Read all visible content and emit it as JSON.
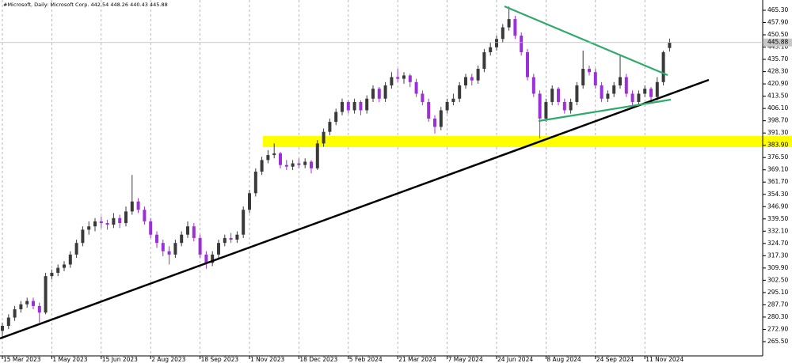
{
  "chart_data": {
    "type": "candlestick",
    "title": "#Microsoft, Daily:  Microsoft Corp.",
    "up_color": "#3a3a3a",
    "down_color": "#9b30d9",
    "ylim": [
      256.9,
      471.5
    ],
    "yticks": [
      {
        "value": 465.3,
        "label": "465.30"
      },
      {
        "value": 457.9,
        "label": "457.90"
      },
      {
        "value": 450.5,
        "label": "450.50"
      },
      {
        "value": 443.1,
        "label": "443.10"
      },
      {
        "value": 435.7,
        "label": "435.70"
      },
      {
        "value": 428.3,
        "label": "428.30"
      },
      {
        "value": 420.9,
        "label": "420.90"
      },
      {
        "value": 413.5,
        "label": "413.50"
      },
      {
        "value": 406.1,
        "label": "406.10"
      },
      {
        "value": 398.7,
        "label": "398.70"
      },
      {
        "value": 391.3,
        "label": "391.30"
      },
      {
        "value": 383.9,
        "label": "383.90"
      },
      {
        "value": 376.5,
        "label": "376.50"
      },
      {
        "value": 369.1,
        "label": "369.10"
      },
      {
        "value": 361.7,
        "label": "361.70"
      },
      {
        "value": 354.3,
        "label": "354.30"
      },
      {
        "value": 346.9,
        "label": "346.90"
      },
      {
        "value": 339.5,
        "label": "339.50"
      },
      {
        "value": 332.1,
        "label": "332.10"
      },
      {
        "value": 324.7,
        "label": "324.70"
      },
      {
        "value": 317.3,
        "label": "317.30"
      },
      {
        "value": 309.9,
        "label": "309.90"
      },
      {
        "value": 302.5,
        "label": "302.50"
      },
      {
        "value": 295.1,
        "label": "295.10"
      },
      {
        "value": 287.7,
        "label": "287.70"
      },
      {
        "value": 280.3,
        "label": "280.30"
      },
      {
        "value": 272.9,
        "label": "272.90"
      },
      {
        "value": 265.5,
        "label": "265.50"
      }
    ],
    "categories": [
      "15 Mar 2023",
      null,
      null,
      null,
      null,
      null,
      null,
      null,
      "1 May 2023",
      null,
      null,
      null,
      null,
      null,
      null,
      null,
      "15 Jun 2023",
      null,
      null,
      null,
      null,
      null,
      null,
      null,
      "2 Aug 2023",
      null,
      null,
      null,
      null,
      null,
      null,
      null,
      "18 Sep 2023",
      null,
      null,
      null,
      null,
      null,
      null,
      null,
      "1 Nov 2023",
      null,
      null,
      null,
      null,
      null,
      null,
      null,
      "18 Dec 2023",
      null,
      null,
      null,
      null,
      null,
      null,
      null,
      "5 Feb 2024",
      null,
      null,
      null,
      null,
      null,
      null,
      null,
      "21 Mar 2024",
      null,
      null,
      null,
      null,
      null,
      null,
      null,
      "7 May 2024",
      null,
      null,
      null,
      null,
      null,
      null,
      null,
      "24 Jun 2024",
      null,
      null,
      null,
      null,
      null,
      null,
      null,
      "8 Aug 2024",
      null,
      null,
      null,
      null,
      null,
      null,
      null,
      "24 Sep 2024",
      null,
      null,
      null,
      null,
      null,
      null,
      null,
      "11 Nov 2024",
      null,
      null,
      null,
      null
    ],
    "ohlc": [
      [
        272,
        277,
        268,
        275
      ],
      [
        275,
        282,
        273,
        280
      ],
      [
        280,
        287,
        278,
        285
      ],
      [
        285,
        290,
        283,
        288
      ],
      [
        288,
        292,
        286,
        290
      ],
      [
        290,
        292,
        285,
        287
      ],
      [
        287,
        289,
        277,
        283
      ],
      [
        283,
        307,
        282,
        305
      ],
      [
        305,
        309,
        303,
        307
      ],
      [
        307,
        312,
        305,
        310
      ],
      [
        310,
        314,
        308,
        312
      ],
      [
        312,
        320,
        310,
        318
      ],
      [
        318,
        327,
        316,
        325
      ],
      [
        325,
        335,
        323,
        333
      ],
      [
        333,
        338,
        330,
        335
      ],
      [
        335,
        340,
        332,
        338
      ],
      [
        338,
        341,
        334,
        337
      ],
      [
        337,
        339,
        333,
        336
      ],
      [
        336,
        343,
        334,
        340
      ],
      [
        340,
        342,
        334,
        337
      ],
      [
        337,
        347,
        335,
        344
      ],
      [
        344,
        366,
        342,
        350
      ],
      [
        350,
        352,
        343,
        345
      ],
      [
        345,
        347,
        336,
        338
      ],
      [
        338,
        340,
        328,
        330
      ],
      [
        330,
        332,
        322,
        325
      ],
      [
        325,
        327,
        317,
        320
      ],
      [
        320,
        323,
        312,
        318
      ],
      [
        318,
        327,
        316,
        325
      ],
      [
        325,
        332,
        323,
        330
      ],
      [
        330,
        338,
        328,
        335
      ],
      [
        335,
        337,
        326,
        328
      ],
      [
        328,
        330,
        316,
        318
      ],
      [
        318,
        320,
        309.5,
        313
      ],
      [
        313,
        320,
        311,
        318
      ],
      [
        318,
        327,
        316,
        325
      ],
      [
        325,
        330,
        323,
        328
      ],
      [
        328,
        331,
        325,
        327
      ],
      [
        327,
        332,
        325,
        330
      ],
      [
        330,
        347,
        328,
        345
      ],
      [
        345,
        357,
        343,
        355
      ],
      [
        355,
        370,
        353,
        368
      ],
      [
        368,
        377,
        366,
        375
      ],
      [
        375,
        381,
        373,
        378
      ],
      [
        378,
        385,
        376,
        379
      ],
      [
        379,
        380,
        370,
        372
      ],
      [
        372,
        375,
        369,
        371
      ],
      [
        371,
        375,
        369,
        373
      ],
      [
        373,
        376,
        370,
        372
      ],
      [
        372,
        376,
        370,
        374
      ],
      [
        374,
        375,
        367,
        370
      ],
      [
        370,
        387,
        369,
        385
      ],
      [
        385,
        394,
        383,
        392
      ],
      [
        392,
        400,
        390,
        398
      ],
      [
        398,
        406,
        396,
        404
      ],
      [
        404,
        412,
        402,
        410
      ],
      [
        410,
        411,
        403,
        405
      ],
      [
        405,
        412,
        403,
        410
      ],
      [
        410,
        411,
        402,
        405
      ],
      [
        405,
        414,
        403,
        412
      ],
      [
        412,
        420,
        410,
        418
      ],
      [
        418,
        419,
        410,
        412
      ],
      [
        412,
        422,
        410,
        420
      ],
      [
        420,
        428,
        418,
        425
      ],
      [
        425,
        430,
        422,
        424
      ],
      [
        424,
        428,
        421,
        426
      ],
      [
        426,
        427,
        419,
        422
      ],
      [
        422,
        424,
        413,
        415
      ],
      [
        415,
        417,
        408,
        410
      ],
      [
        410,
        412,
        398,
        400
      ],
      [
        400,
        402,
        391,
        395
      ],
      [
        395,
        407,
        393,
        405
      ],
      [
        405,
        412,
        403,
        410
      ],
      [
        410,
        415,
        408,
        412
      ],
      [
        412,
        422,
        410,
        420
      ],
      [
        420,
        427,
        418,
        425
      ],
      [
        425,
        427,
        420,
        423
      ],
      [
        423,
        432,
        421,
        430
      ],
      [
        430,
        442,
        428,
        440
      ],
      [
        440,
        446,
        438,
        443
      ],
      [
        443,
        450,
        441,
        448
      ],
      [
        448,
        457,
        446,
        455
      ],
      [
        455,
        467.5,
        453,
        460
      ],
      [
        460,
        462,
        448,
        450
      ],
      [
        450,
        452,
        438,
        440
      ],
      [
        440,
        442,
        423,
        425
      ],
      [
        425,
        427,
        413,
        415
      ],
      [
        415,
        417,
        388,
        400
      ],
      [
        400,
        412,
        398,
        410
      ],
      [
        410,
        420,
        408,
        418
      ],
      [
        418,
        419,
        408,
        410
      ],
      [
        410,
        412,
        403,
        405
      ],
      [
        405,
        412,
        403,
        410
      ],
      [
        410,
        422,
        408,
        420
      ],
      [
        420,
        441,
        418,
        430
      ],
      [
        430,
        432,
        426,
        428
      ],
      [
        428,
        430,
        418,
        420
      ],
      [
        420,
        422,
        410,
        412
      ],
      [
        412,
        417,
        410,
        415
      ],
      [
        415,
        422,
        413,
        420
      ],
      [
        420,
        438,
        418,
        425
      ],
      [
        425,
        427,
        413,
        415
      ],
      [
        415,
        417,
        406,
        410
      ],
      [
        410,
        417,
        408,
        415
      ],
      [
        415,
        420,
        413,
        418
      ],
      [
        418,
        419,
        410,
        413
      ],
      [
        413,
        425,
        411,
        422
      ],
      [
        422,
        441,
        420,
        440
      ],
      [
        442.54,
        448.26,
        440.43,
        445.88
      ]
    ]
  }
}
